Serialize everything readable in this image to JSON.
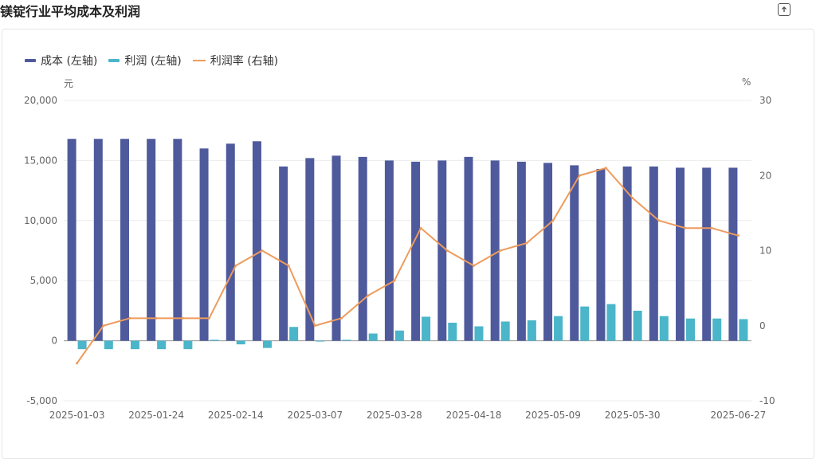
{
  "page_title": "镁锭行业平均成本及利润",
  "export_icon": "export-icon",
  "legend": [
    {
      "label": "成本 (左轴)",
      "color": "#4e5a9c",
      "kind": "bar"
    },
    {
      "label": "利润 (左轴)",
      "color": "#4bb5c9",
      "kind": "bar"
    },
    {
      "label": "利润率 (右轴)",
      "color": "#ee9b5c",
      "kind": "line"
    }
  ],
  "unit_left": "元",
  "unit_right": "%",
  "chart_data": {
    "type": "bar",
    "x": [
      "2025-01-03",
      "2025-01-10",
      "2025-01-17",
      "2025-01-24",
      "2025-01-31",
      "2025-02-07",
      "2025-02-14",
      "2025-02-21",
      "2025-02-28",
      "2025-03-07",
      "2025-03-14",
      "2025-03-21",
      "2025-03-28",
      "2025-04-04",
      "2025-04-11",
      "2025-04-18",
      "2025-04-25",
      "2025-05-02",
      "2025-05-09",
      "2025-05-16",
      "2025-05-23",
      "2025-05-30",
      "2025-06-06",
      "2025-06-13",
      "2025-06-20",
      "2025-06-27"
    ],
    "x_tick_labels": [
      "2025-01-03",
      "2025-01-24",
      "2025-02-14",
      "2025-03-07",
      "2025-03-28",
      "2025-04-18",
      "2025-05-09",
      "2025-05-30",
      "2025-06-27"
    ],
    "series": [
      {
        "name": "成本 (左轴)",
        "axis": "left",
        "type": "bar",
        "values": [
          16800,
          16800,
          16800,
          16800,
          16800,
          16000,
          16400,
          16600,
          14500,
          15200,
          15400,
          15300,
          15000,
          14900,
          15000,
          15300,
          15000,
          14900,
          14800,
          14600,
          14300,
          14500,
          14500,
          14400,
          14400,
          14400
        ]
      },
      {
        "name": "利润 (左轴)",
        "axis": "left",
        "type": "bar",
        "values": [
          -700,
          -700,
          -700,
          -700,
          -700,
          80,
          -300,
          -600,
          1150,
          -20,
          80,
          600,
          850,
          2000,
          1500,
          1200,
          1600,
          1700,
          2050,
          2850,
          3050,
          2500,
          2050,
          1850,
          1850,
          1800
        ]
      },
      {
        "name": "利润率 (右轴)",
        "axis": "right",
        "type": "line",
        "values": [
          -5,
          0,
          1,
          1,
          1,
          1,
          8,
          10,
          8,
          0,
          1,
          4,
          6,
          13,
          10,
          8,
          10,
          11,
          14,
          20,
          21,
          17,
          14,
          13,
          13,
          12
        ]
      }
    ],
    "y_left": {
      "ticks": [
        "-5,000",
        "0",
        "5,000",
        "10,000",
        "15,000",
        "20,000"
      ],
      "tick_values": [
        -5000,
        0,
        5000,
        10000,
        15000,
        20000
      ],
      "ylim": [
        -5000,
        20000
      ]
    },
    "y_right": {
      "ticks": [
        "-10",
        "0",
        "10",
        "20",
        "30"
      ],
      "tick_values": [
        -10,
        0,
        10,
        20,
        30
      ],
      "ylim": [
        -10,
        30
      ]
    },
    "grid": true,
    "legend_position": "top-left"
  }
}
